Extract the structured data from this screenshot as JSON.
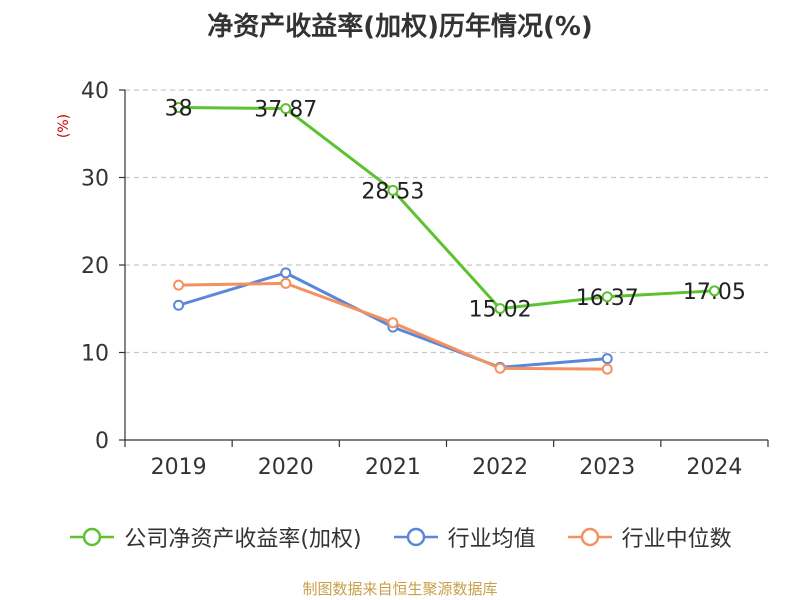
{
  "title": "净资产收益率(加权)历年情况(%)",
  "source": "制图数据来自恒生聚源数据库",
  "chart_data": {
    "type": "line",
    "title": "净资产收益率(加权)历年情况(%)",
    "ylabel": "(%)",
    "xlabel": "",
    "categories": [
      "2019",
      "2020",
      "2021",
      "2022",
      "2023",
      "2024"
    ],
    "ylim": [
      0,
      40
    ],
    "yticks": [
      0,
      10,
      20,
      30,
      40
    ],
    "grid": true,
    "legend_position": "bottom",
    "series": [
      {
        "name": "公司净资产收益率(加权)",
        "color": "#5cc22f",
        "values": [
          38,
          37.87,
          28.53,
          15.02,
          16.37,
          17.05
        ],
        "labels": [
          "38",
          "37.87",
          "28.53",
          "15.02",
          "16.37",
          "17.05"
        ]
      },
      {
        "name": "行业均值",
        "color": "#5b87db",
        "values": [
          15.4,
          19.1,
          12.9,
          8.3,
          9.3,
          null
        ]
      },
      {
        "name": "行业中位数",
        "color": "#f4915e",
        "values": [
          17.7,
          17.9,
          13.4,
          8.2,
          8.1,
          null
        ]
      }
    ]
  }
}
